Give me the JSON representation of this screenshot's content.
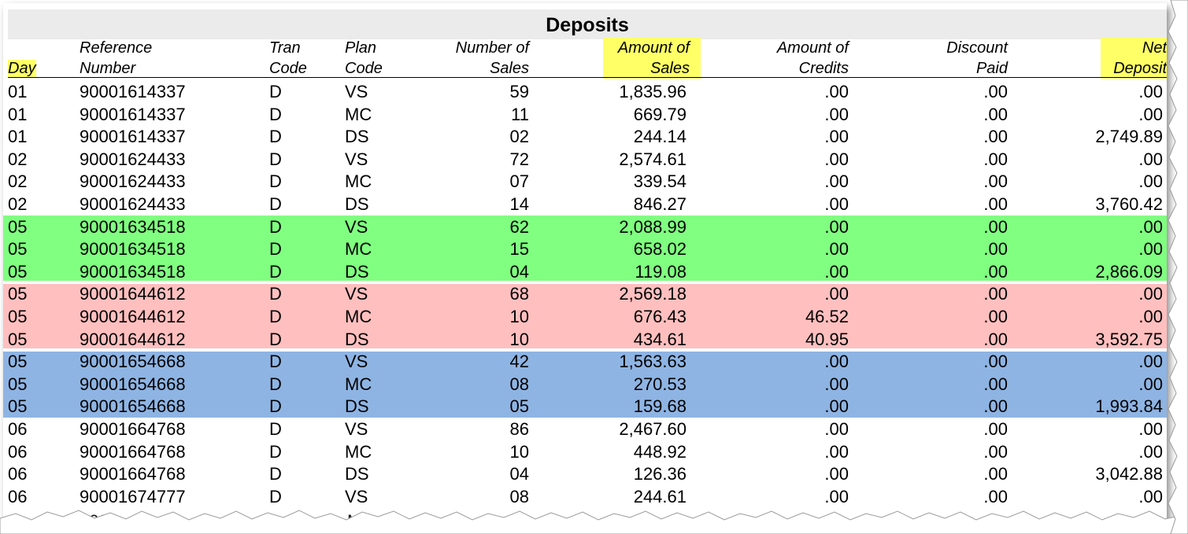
{
  "title": "Deposits",
  "headers": {
    "day": "Day",
    "reference": [
      "Reference",
      "Number"
    ],
    "tran": [
      "Tran",
      "Code"
    ],
    "plan": [
      "Plan",
      "Code"
    ],
    "num_sales": [
      "Number of",
      "Sales"
    ],
    "amount_sales": [
      "Amount of",
      "Sales"
    ],
    "amount_credits": [
      "Amount of",
      "Credits"
    ],
    "discount": [
      "Discount",
      "Paid"
    ],
    "net": [
      "Net",
      "Deposit"
    ]
  },
  "colors": {
    "highlight": "#ffff66",
    "green": "#80ff80",
    "pink": "#ffbfbf",
    "blue": "#8eb4e3",
    "title_bg": "#ebebeb"
  },
  "rows": [
    {
      "day": "01",
      "ref": "90001614337",
      "tran": "D",
      "plan": "VS",
      "num": "59",
      "sales": "1,835.96",
      "credits": ".00",
      "discount": ".00",
      "net": ".00",
      "band": "none"
    },
    {
      "day": "01",
      "ref": "90001614337",
      "tran": "D",
      "plan": "MC",
      "num": "11",
      "sales": "669.79",
      "credits": ".00",
      "discount": ".00",
      "net": ".00",
      "band": "none"
    },
    {
      "day": "01",
      "ref": "90001614337",
      "tran": "D",
      "plan": "DS",
      "num": "02",
      "sales": "244.14",
      "credits": ".00",
      "discount": ".00",
      "net": "2,749.89",
      "band": "none"
    },
    {
      "day": "02",
      "ref": "90001624433",
      "tran": "D",
      "plan": "VS",
      "num": "72",
      "sales": "2,574.61",
      "credits": ".00",
      "discount": ".00",
      "net": ".00",
      "band": "none"
    },
    {
      "day": "02",
      "ref": "90001624433",
      "tran": "D",
      "plan": "MC",
      "num": "07",
      "sales": "339.54",
      "credits": ".00",
      "discount": ".00",
      "net": ".00",
      "band": "none"
    },
    {
      "day": "02",
      "ref": "90001624433",
      "tran": "D",
      "plan": "DS",
      "num": "14",
      "sales": "846.27",
      "credits": ".00",
      "discount": ".00",
      "net": "3,760.42",
      "band": "none"
    },
    {
      "day": "05",
      "ref": "90001634518",
      "tran": "D",
      "plan": "VS",
      "num": "62",
      "sales": "2,088.99",
      "credits": ".00",
      "discount": ".00",
      "net": ".00",
      "band": "green"
    },
    {
      "day": "05",
      "ref": "90001634518",
      "tran": "D",
      "plan": "MC",
      "num": "15",
      "sales": "658.02",
      "credits": ".00",
      "discount": ".00",
      "net": ".00",
      "band": "green"
    },
    {
      "day": "05",
      "ref": "90001634518",
      "tran": "D",
      "plan": "DS",
      "num": "04",
      "sales": "119.08",
      "credits": ".00",
      "discount": ".00",
      "net": "2,866.09",
      "band": "green"
    },
    {
      "day": "05",
      "ref": "90001644612",
      "tran": "D",
      "plan": "VS",
      "num": "68",
      "sales": "2,569.18",
      "credits": ".00",
      "discount": ".00",
      "net": ".00",
      "band": "pink"
    },
    {
      "day": "05",
      "ref": "90001644612",
      "tran": "D",
      "plan": "MC",
      "num": "10",
      "sales": "676.43",
      "credits": "46.52",
      "discount": ".00",
      "net": ".00",
      "band": "pink"
    },
    {
      "day": "05",
      "ref": "90001644612",
      "tran": "D",
      "plan": "DS",
      "num": "10",
      "sales": "434.61",
      "credits": "40.95",
      "discount": ".00",
      "net": "3,592.75",
      "band": "pink"
    },
    {
      "day": "05",
      "ref": "90001654668",
      "tran": "D",
      "plan": "VS",
      "num": "42",
      "sales": "1,563.63",
      "credits": ".00",
      "discount": ".00",
      "net": ".00",
      "band": "blue"
    },
    {
      "day": "05",
      "ref": "90001654668",
      "tran": "D",
      "plan": "MC",
      "num": "08",
      "sales": "270.53",
      "credits": ".00",
      "discount": ".00",
      "net": ".00",
      "band": "blue"
    },
    {
      "day": "05",
      "ref": "90001654668",
      "tran": "D",
      "plan": "DS",
      "num": "05",
      "sales": "159.68",
      "credits": ".00",
      "discount": ".00",
      "net": "1,993.84",
      "band": "blue"
    },
    {
      "day": "06",
      "ref": "90001664768",
      "tran": "D",
      "plan": "VS",
      "num": "86",
      "sales": "2,467.60",
      "credits": ".00",
      "discount": ".00",
      "net": ".00",
      "band": "none"
    },
    {
      "day": "06",
      "ref": "90001664768",
      "tran": "D",
      "plan": "MC",
      "num": "10",
      "sales": "448.92",
      "credits": ".00",
      "discount": ".00",
      "net": ".00",
      "band": "none"
    },
    {
      "day": "06",
      "ref": "90001664768",
      "tran": "D",
      "plan": "DS",
      "num": "04",
      "sales": "126.36",
      "credits": ".00",
      "discount": ".00",
      "net": "3,042.88",
      "band": "none"
    },
    {
      "day": "06",
      "ref": "90001674777",
      "tran": "D",
      "plan": "VS",
      "num": "08",
      "sales": "244.61",
      "credits": ".00",
      "discount": ".00",
      "net": ".00",
      "band": "none"
    }
  ]
}
